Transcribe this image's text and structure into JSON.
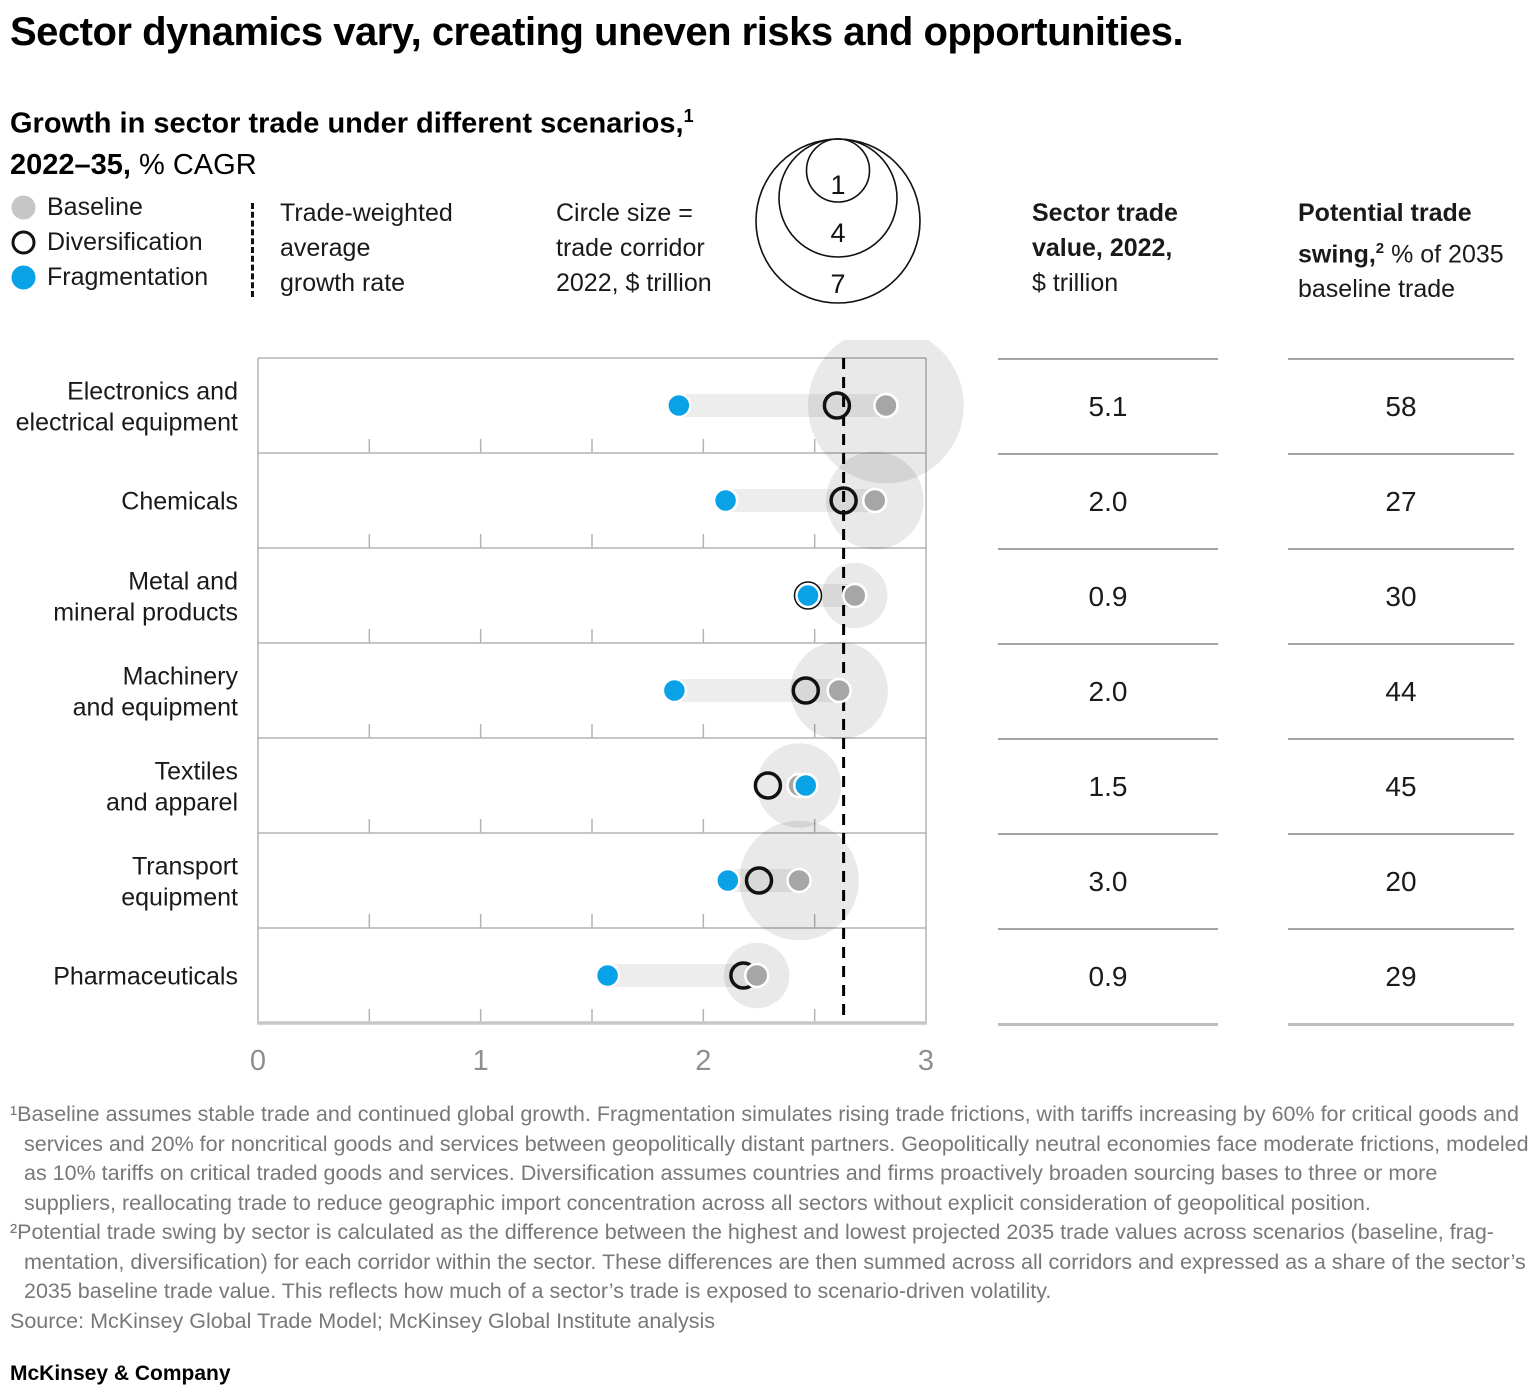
{
  "title": "Sector dynamics vary, creating uneven risks and opportunities.",
  "subtitle": {
    "line1_bold": "Growth in sector trade under different scenarios,",
    "line1_sup": "1",
    "line2_bold": "2022–35,",
    "line2_regular": " % CAGR"
  },
  "legend": {
    "items": [
      {
        "label": "Baseline",
        "marker": "baseline-gray-dot"
      },
      {
        "label": "Diversification",
        "marker": "black-open-ring"
      },
      {
        "label": "Fragmentation",
        "marker": "blue-dot"
      }
    ],
    "avg_line_lines": [
      "Trade-weighted",
      "average",
      "growth rate"
    ],
    "circle_size_lines": [
      "Circle size =",
      "trade corridor",
      "2022, $ trillion"
    ],
    "size_key_values": [
      "1",
      "4",
      "7"
    ]
  },
  "columns": {
    "sector_trade": {
      "h1": "Sector trade",
      "h2": "value, 2022,",
      "h3": "$ trillion"
    },
    "potential_swing": {
      "h1": "Potential trade",
      "h2_bold": "swing,",
      "h2_sup": "2",
      "h2_regular": " % of 2035",
      "h3": "baseline trade"
    }
  },
  "chart_data": {
    "type": "scatter",
    "subtype": "dot-plot-with-bubbles",
    "x_axis": {
      "min": 0,
      "max": 3,
      "major_ticks": [
        0,
        1,
        2,
        3
      ],
      "minor_tick_step": 0.5,
      "unit": "% CAGR"
    },
    "trade_weighted_average": 2.63,
    "series_names": [
      "Baseline",
      "Diversification",
      "Fragmentation"
    ],
    "bubble_meaning": "trade corridor 2022, $ trillion",
    "rows": [
      {
        "sector": "Electronics and electrical equipment",
        "label_lines": [
          "Electronics and",
          "electrical equipment"
        ],
        "fragmentation": 1.89,
        "diversification": 2.6,
        "baseline": 2.82,
        "corridor_size_2022": 5.1,
        "sector_trade_value": "5.1",
        "potential_trade_swing": "58"
      },
      {
        "sector": "Chemicals",
        "label_lines": [
          "Chemicals"
        ],
        "fragmentation": 2.1,
        "diversification": 2.63,
        "baseline": 2.77,
        "corridor_size_2022": 2.0,
        "sector_trade_value": "2.0",
        "potential_trade_swing": "27"
      },
      {
        "sector": "Metal and mineral products",
        "label_lines": [
          "Metal and",
          "mineral products"
        ],
        "fragmentation": 2.47,
        "diversification": 2.47,
        "baseline": 2.68,
        "corridor_size_2022": 0.9,
        "sector_trade_value": "0.9",
        "potential_trade_swing": "30"
      },
      {
        "sector": "Machinery and equipment",
        "label_lines": [
          "Machinery",
          "and equipment"
        ],
        "fragmentation": 1.87,
        "diversification": 2.46,
        "baseline": 2.61,
        "corridor_size_2022": 2.0,
        "sector_trade_value": "2.0",
        "potential_trade_swing": "44"
      },
      {
        "sector": "Textiles and apparel",
        "label_lines": [
          "Textiles",
          "and apparel"
        ],
        "fragmentation": 2.46,
        "diversification": 2.29,
        "baseline": 2.43,
        "corridor_size_2022": 1.5,
        "sector_trade_value": "1.5",
        "potential_trade_swing": "45"
      },
      {
        "sector": "Transport equipment",
        "label_lines": [
          "Transport",
          "equipment"
        ],
        "fragmentation": 2.11,
        "diversification": 2.25,
        "baseline": 2.43,
        "corridor_size_2022": 3.0,
        "sector_trade_value": "3.0",
        "potential_trade_swing": "20"
      },
      {
        "sector": "Pharmaceuticals",
        "label_lines": [
          "Pharmaceuticals"
        ],
        "fragmentation": 1.57,
        "diversification": 2.18,
        "baseline": 2.24,
        "corridor_size_2022": 0.9,
        "sector_trade_value": "0.9",
        "potential_trade_swing": "29"
      }
    ]
  },
  "footnotes": [
    "¹Baseline assumes stable trade and continued global growth. Fragmentation simulates rising trade frictions, with tariffs increasing by 60% for critical goods and services and 20% for noncritical goods and services between geopolitically distant partners. Geopolitically neutral economies face moderate frictions, modeled as 10% tariffs on critical traded goods and services. Diversification assumes countries and firms proactively broaden sourcing bases to three or more suppliers, reallocating trade to reduce geographic import concentration across all sectors without explicit consideration of geopolitical position.",
    "²Potential trade swing by sector is calculated as the difference between the highest and lowest projected 2035 trade values across scenarios (baseline, frag­mentation, diversification) for each corridor within the sector. These differences are then summed across all corridors and expressed as a share of the sector’s 2035 baseline trade value. This reflects how much of a sector’s trade is exposed to scenario-driven volatility."
  ],
  "source": "Source: McKinsey Global Trade Model; McKinsey Global Institute analysis",
  "footer": "McKinsey & Company",
  "colors": {
    "fragmentation_blue": "#0aa2e6",
    "baseline_gray": "#a6a6a6",
    "legend_baseline_gray": "#c6c6c6",
    "diversification_ring": "#111111",
    "bubble_fill": "#000000",
    "bubble_opacity": "0.085",
    "bar_fill": "#000000",
    "bar_opacity": "0.07",
    "grid_gray": "#b3b3b3",
    "axis_gray": "#c8c8c8",
    "tick_label_gray": "#8f8f8f"
  }
}
